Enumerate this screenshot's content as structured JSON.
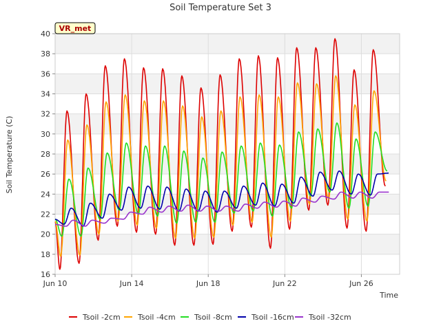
{
  "chart_data": {
    "type": "line",
    "title": "Soil Temperature Set 3",
    "xlabel": "Time",
    "ylabel": "Soil Temperature (C)",
    "badge": "VR_met",
    "ylim": [
      16,
      40
    ],
    "yticks": [
      16,
      18,
      20,
      22,
      24,
      26,
      28,
      30,
      32,
      34,
      36,
      38,
      40
    ],
    "xlim": [
      0,
      18
    ],
    "xticks": [
      {
        "x": 0,
        "label": "Jun 10"
      },
      {
        "x": 4,
        "label": "Jun 14"
      },
      {
        "x": 8,
        "label": "Jun 18"
      },
      {
        "x": 12,
        "label": "Jun 22"
      },
      {
        "x": 16,
        "label": "Jun 26"
      }
    ],
    "grid": true,
    "legend_position": "bottom",
    "day_peaks_x_day_index": [
      0,
      1,
      2,
      3,
      4,
      5,
      6,
      7,
      8,
      9,
      10,
      11,
      12,
      13,
      14,
      15,
      16,
      17
    ],
    "series": [
      {
        "name": "Tsoil -2cm",
        "color": "#dd0000",
        "daily_max": [
          32.3,
          34.0,
          36.8,
          37.5,
          36.6,
          36.5,
          35.8,
          34.6,
          35.9,
          37.5,
          37.8,
          37.6,
          38.6,
          38.6,
          39.5,
          36.4,
          38.4
        ],
        "daily_min": [
          16.5,
          17.1,
          19.4,
          20.8,
          20.2,
          20.0,
          18.9,
          18.9,
          19.0,
          20.3,
          20.7,
          18.6,
          20.5,
          22.4,
          22.9,
          20.6,
          20.3,
          24.8
        ]
      },
      {
        "name": "Tsoil -4cm",
        "color": "#ffa500",
        "daily_max": [
          29.4,
          30.9,
          33.2,
          33.9,
          33.3,
          33.3,
          32.8,
          31.7,
          32.3,
          33.7,
          33.9,
          33.7,
          35.1,
          35.0,
          35.8,
          32.9,
          34.3
        ],
        "daily_min": [
          17.8,
          17.9,
          20.0,
          21.3,
          20.9,
          20.6,
          19.6,
          19.6,
          19.7,
          20.9,
          21.2,
          19.7,
          21.3,
          23.0,
          23.5,
          21.5,
          21.3,
          25.3
        ]
      },
      {
        "name": "Tsoil -8cm",
        "color": "#22dd22",
        "daily_max": [
          25.5,
          26.6,
          28.1,
          29.1,
          28.8,
          28.8,
          28.3,
          27.6,
          28.2,
          28.8,
          29.1,
          28.9,
          30.2,
          30.5,
          31.1,
          29.5,
          30.2
        ],
        "daily_min": [
          19.8,
          19.8,
          21.5,
          22.4,
          22.0,
          21.8,
          21.1,
          21.2,
          21.2,
          22.1,
          22.3,
          21.8,
          22.6,
          23.8,
          24.2,
          22.6,
          22.8,
          26.3
        ]
      },
      {
        "name": "Tsoil -16cm",
        "color": "#0000aa",
        "daily_max": [
          22.6,
          23.1,
          24.0,
          24.7,
          24.8,
          24.7,
          24.5,
          24.3,
          24.3,
          24.8,
          25.1,
          25.0,
          25.7,
          26.2,
          26.3,
          26.0,
          26.0
        ],
        "daily_min": [
          21.0,
          20.8,
          21.6,
          22.4,
          22.6,
          22.5,
          22.3,
          22.3,
          22.2,
          22.6,
          22.9,
          22.8,
          23.1,
          23.8,
          24.4,
          24.0,
          23.9,
          26.1
        ]
      },
      {
        "name": "Tsoil -32cm",
        "color": "#9933cc",
        "daily_max": [
          21.4,
          21.4,
          21.6,
          22.2,
          22.7,
          22.8,
          22.9,
          22.8,
          22.8,
          23.0,
          23.2,
          23.3,
          23.6,
          23.8,
          24.2,
          24.2,
          24.2
        ],
        "daily_min": [
          20.8,
          20.8,
          21.1,
          21.5,
          22.0,
          22.2,
          22.3,
          22.3,
          22.3,
          22.3,
          22.6,
          22.7,
          22.8,
          23.2,
          23.5,
          23.6,
          23.6,
          24.2
        ]
      }
    ]
  }
}
